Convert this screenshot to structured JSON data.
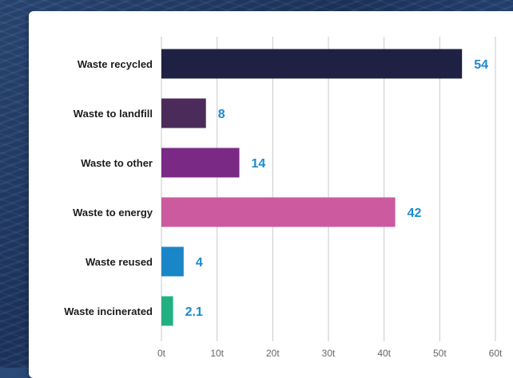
{
  "chart_data": {
    "type": "bar",
    "orientation": "horizontal",
    "categories": [
      "Waste recycled",
      "Waste to landfill",
      "Waste to other",
      "Waste to energy",
      "Waste reused",
      "Waste incinerated"
    ],
    "values": [
      54,
      8,
      14,
      42,
      4,
      2.1
    ],
    "value_labels": [
      "54",
      "8",
      "14",
      "42",
      "4",
      "2.1"
    ],
    "bar_colors": [
      "#1f2144",
      "#4b2b5a",
      "#7a2a85",
      "#cc5a9e",
      "#1a86c8",
      "#22b083"
    ],
    "x_ticks": [
      "0t",
      "10t",
      "20t",
      "30t",
      "40t",
      "50t",
      "60t"
    ],
    "xlim": [
      0,
      60
    ],
    "grid": "vertical",
    "title": "",
    "xlabel": "",
    "ylabel": ""
  },
  "colors": {
    "value_label": "#1a8bd0"
  }
}
